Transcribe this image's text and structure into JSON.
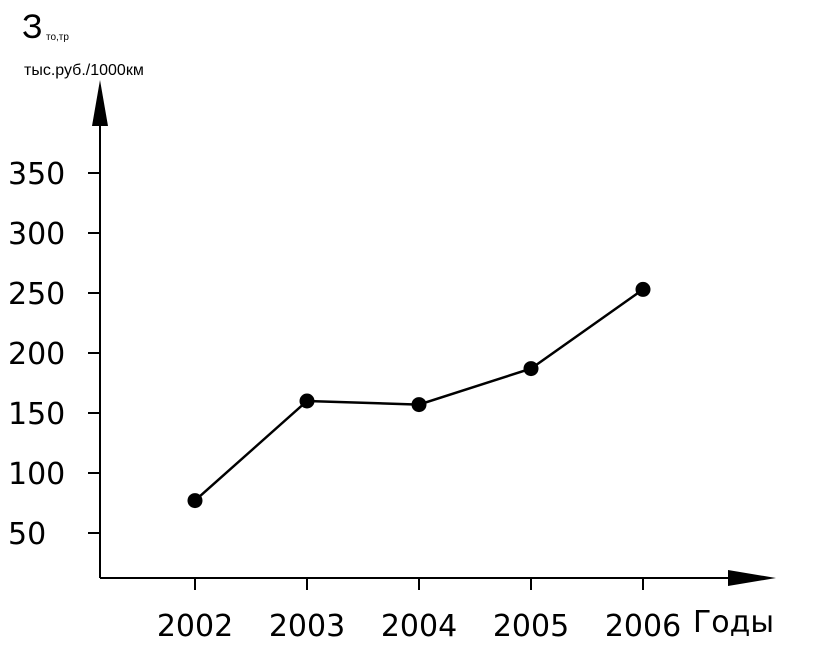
{
  "chart_data": {
    "type": "line",
    "title_main": "З",
    "title_sub": "то,тр",
    "ylabel": "тыс.руб./1000км",
    "xlabel": "Годы",
    "x": [
      "2002",
      "2003",
      "2004",
      "2005",
      "2006"
    ],
    "y": [
      77,
      160,
      157,
      187,
      253
    ],
    "y_ticks": [
      50,
      100,
      150,
      200,
      250,
      300,
      350
    ],
    "ylim": [
      22,
      400
    ],
    "grid": false,
    "legend": "none",
    "line_color": "#000000",
    "marker_color": "#000000"
  }
}
